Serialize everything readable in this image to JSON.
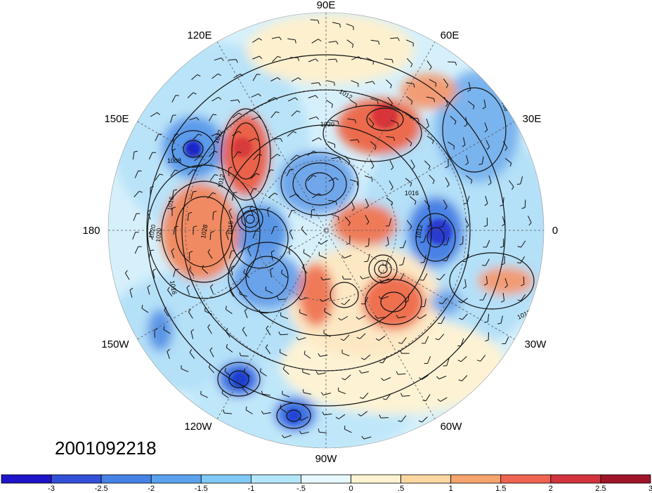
{
  "map": {
    "projection": "north-polar-stereographic",
    "date_stamp": "2001092218",
    "longitude_labels": [
      {
        "id": "lon-90e",
        "text": "90E"
      },
      {
        "id": "lon-60e",
        "text": "60E"
      },
      {
        "id": "lon-30e",
        "text": "30E"
      },
      {
        "id": "lon-0",
        "text": "0"
      },
      {
        "id": "lon-30w",
        "text": "30W"
      },
      {
        "id": "lon-60w",
        "text": "60W"
      },
      {
        "id": "lon-90w",
        "text": "90W"
      },
      {
        "id": "lon-120w",
        "text": "120W"
      },
      {
        "id": "lon-150w",
        "text": "150W"
      },
      {
        "id": "lon-180",
        "text": "180"
      },
      {
        "id": "lon-150e",
        "text": "150E"
      },
      {
        "id": "lon-120e",
        "text": "120E"
      }
    ],
    "contour_labels": [
      "1008",
      "1012",
      "1016",
      "1020",
      "1028",
      "1012",
      "1016",
      "1012",
      "1020",
      "1016",
      "1020",
      "1012",
      "1016",
      "1012",
      "1008",
      "1012"
    ],
    "colors": {
      "neg_strong": "#1f2fc8",
      "neg": "#3f7fe6",
      "neg_light": "#8fc6f2",
      "neg_faint": "#cdeefa",
      "pos_faint": "#fbe7c2",
      "pos": "#f2a27a",
      "pos_strong": "#e04a3a",
      "pos_max": "#b21a2a"
    }
  },
  "colorbar": {
    "tick_labels": [
      "-3",
      "-2.5",
      "-2",
      "-1.5",
      "-1",
      "-.5",
      "0",
      ".5",
      "1",
      "1.5",
      "2",
      "2.5",
      "3"
    ],
    "bin_colors": [
      "#1e14c8",
      "#3250d8",
      "#4682e6",
      "#5aa2ee",
      "#80c8f5",
      "#b4e6fa",
      "#e6f8fc",
      "#fdf3d2",
      "#fad7a0",
      "#f5a46e",
      "#ee6450",
      "#d2323c",
      "#9e1428"
    ]
  }
}
